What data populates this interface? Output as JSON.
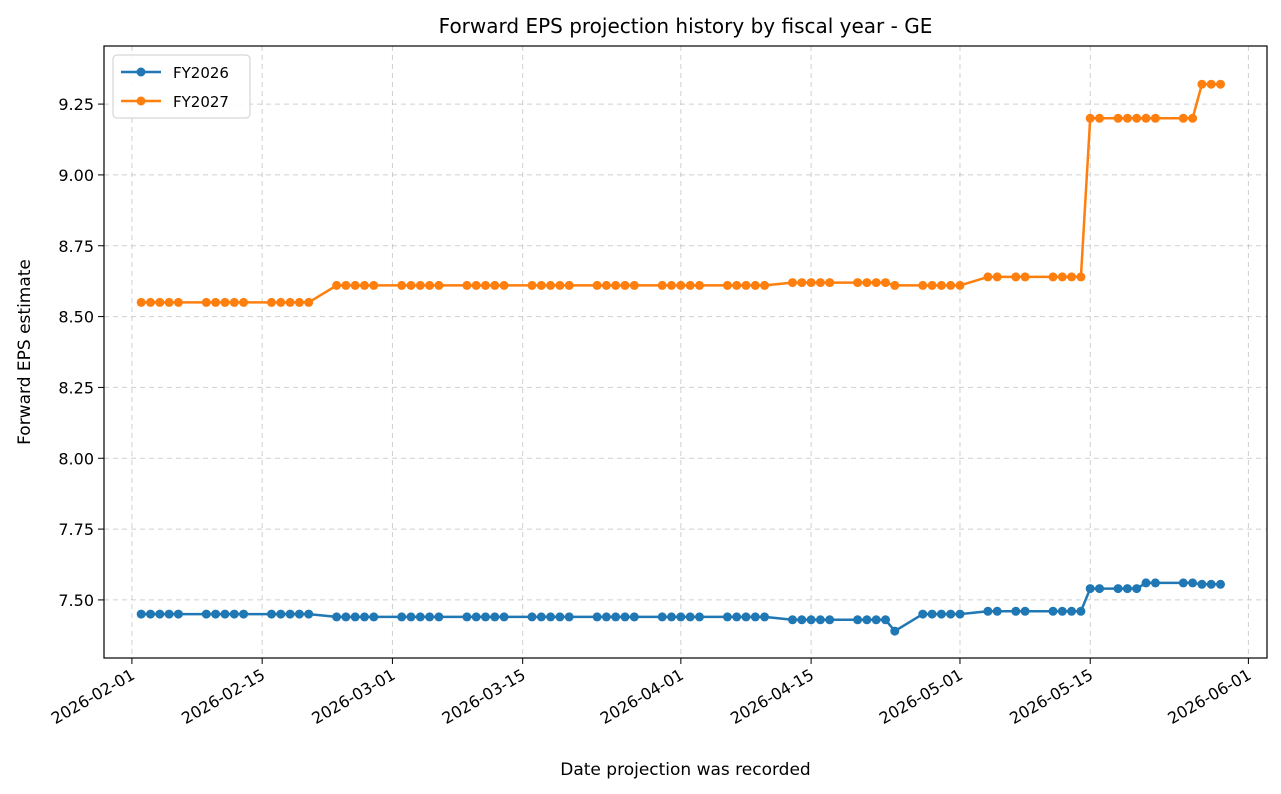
{
  "chart_data": {
    "type": "line",
    "title": "Forward EPS projection history by fiscal year - GE",
    "xlabel": "Date projection was recorded",
    "ylabel": "Forward EPS estimate",
    "x_axis": "date",
    "xlim": [
      "2026-01-29",
      "2026-06-03"
    ],
    "ylim": [
      7.295,
      9.455
    ],
    "x_ticks": [
      "2026-02-01",
      "2026-02-15",
      "2026-03-01",
      "2026-03-15",
      "2026-04-01",
      "2026-04-15",
      "2026-05-01",
      "2026-05-15",
      "2026-06-01"
    ],
    "y_ticks": [
      "7.50",
      "7.75",
      "8.00",
      "8.25",
      "8.50",
      "8.75",
      "9.00",
      "9.25"
    ],
    "grid": true,
    "legend_position": "top-left",
    "series": [
      {
        "name": "FY2026",
        "color": "#1f77b4",
        "points": [
          [
            "2026-02-02",
            7.45
          ],
          [
            "2026-02-03",
            7.45
          ],
          [
            "2026-02-04",
            7.45
          ],
          [
            "2026-02-05",
            7.45
          ],
          [
            "2026-02-06",
            7.45
          ],
          [
            "2026-02-09",
            7.45
          ],
          [
            "2026-02-10",
            7.45
          ],
          [
            "2026-02-11",
            7.45
          ],
          [
            "2026-02-12",
            7.45
          ],
          [
            "2026-02-13",
            7.45
          ],
          [
            "2026-02-16",
            7.45
          ],
          [
            "2026-02-17",
            7.45
          ],
          [
            "2026-02-18",
            7.45
          ],
          [
            "2026-02-19",
            7.45
          ],
          [
            "2026-02-20",
            7.45
          ],
          [
            "2026-02-23",
            7.44
          ],
          [
            "2026-02-24",
            7.44
          ],
          [
            "2026-02-25",
            7.44
          ],
          [
            "2026-02-26",
            7.44
          ],
          [
            "2026-02-27",
            7.44
          ],
          [
            "2026-03-02",
            7.44
          ],
          [
            "2026-03-03",
            7.44
          ],
          [
            "2026-03-04",
            7.44
          ],
          [
            "2026-03-05",
            7.44
          ],
          [
            "2026-03-06",
            7.44
          ],
          [
            "2026-03-09",
            7.44
          ],
          [
            "2026-03-10",
            7.44
          ],
          [
            "2026-03-11",
            7.44
          ],
          [
            "2026-03-12",
            7.44
          ],
          [
            "2026-03-13",
            7.44
          ],
          [
            "2026-03-16",
            7.44
          ],
          [
            "2026-03-17",
            7.44
          ],
          [
            "2026-03-18",
            7.44
          ],
          [
            "2026-03-19",
            7.44
          ],
          [
            "2026-03-20",
            7.44
          ],
          [
            "2026-03-23",
            7.44
          ],
          [
            "2026-03-24",
            7.44
          ],
          [
            "2026-03-25",
            7.44
          ],
          [
            "2026-03-26",
            7.44
          ],
          [
            "2026-03-27",
            7.44
          ],
          [
            "2026-03-30",
            7.44
          ],
          [
            "2026-03-31",
            7.44
          ],
          [
            "2026-04-01",
            7.44
          ],
          [
            "2026-04-02",
            7.44
          ],
          [
            "2026-04-03",
            7.44
          ],
          [
            "2026-04-06",
            7.44
          ],
          [
            "2026-04-07",
            7.44
          ],
          [
            "2026-04-08",
            7.44
          ],
          [
            "2026-04-09",
            7.44
          ],
          [
            "2026-04-10",
            7.44
          ],
          [
            "2026-04-13",
            7.43
          ],
          [
            "2026-04-14",
            7.43
          ],
          [
            "2026-04-15",
            7.43
          ],
          [
            "2026-04-16",
            7.43
          ],
          [
            "2026-04-17",
            7.43
          ],
          [
            "2026-04-20",
            7.43
          ],
          [
            "2026-04-21",
            7.43
          ],
          [
            "2026-04-22",
            7.43
          ],
          [
            "2026-04-23",
            7.43
          ],
          [
            "2026-04-24",
            7.39
          ],
          [
            "2026-04-27",
            7.45
          ],
          [
            "2026-04-28",
            7.45
          ],
          [
            "2026-04-29",
            7.45
          ],
          [
            "2026-04-30",
            7.45
          ],
          [
            "2026-05-01",
            7.45
          ],
          [
            "2026-05-04",
            7.46
          ],
          [
            "2026-05-05",
            7.46
          ],
          [
            "2026-05-07",
            7.46
          ],
          [
            "2026-05-08",
            7.46
          ],
          [
            "2026-05-11",
            7.46
          ],
          [
            "2026-05-12",
            7.46
          ],
          [
            "2026-05-13",
            7.46
          ],
          [
            "2026-05-14",
            7.46
          ],
          [
            "2026-05-15",
            7.54
          ],
          [
            "2026-05-16",
            7.54
          ],
          [
            "2026-05-18",
            7.54
          ],
          [
            "2026-05-19",
            7.54
          ],
          [
            "2026-05-20",
            7.54
          ],
          [
            "2026-05-21",
            7.56
          ],
          [
            "2026-05-22",
            7.56
          ],
          [
            "2026-05-25",
            7.56
          ],
          [
            "2026-05-26",
            7.56
          ],
          [
            "2026-05-27",
            7.555
          ],
          [
            "2026-05-28",
            7.555
          ],
          [
            "2026-05-29",
            7.555
          ]
        ]
      },
      {
        "name": "FY2027",
        "color": "#ff7f0e",
        "points": [
          [
            "2026-02-02",
            8.55
          ],
          [
            "2026-02-03",
            8.55
          ],
          [
            "2026-02-04",
            8.55
          ],
          [
            "2026-02-05",
            8.55
          ],
          [
            "2026-02-06",
            8.55
          ],
          [
            "2026-02-09",
            8.55
          ],
          [
            "2026-02-10",
            8.55
          ],
          [
            "2026-02-11",
            8.55
          ],
          [
            "2026-02-12",
            8.55
          ],
          [
            "2026-02-13",
            8.55
          ],
          [
            "2026-02-16",
            8.55
          ],
          [
            "2026-02-17",
            8.55
          ],
          [
            "2026-02-18",
            8.55
          ],
          [
            "2026-02-19",
            8.55
          ],
          [
            "2026-02-20",
            8.55
          ],
          [
            "2026-02-23",
            8.61
          ],
          [
            "2026-02-24",
            8.61
          ],
          [
            "2026-02-25",
            8.61
          ],
          [
            "2026-02-26",
            8.61
          ],
          [
            "2026-02-27",
            8.61
          ],
          [
            "2026-03-02",
            8.61
          ],
          [
            "2026-03-03",
            8.61
          ],
          [
            "2026-03-04",
            8.61
          ],
          [
            "2026-03-05",
            8.61
          ],
          [
            "2026-03-06",
            8.61
          ],
          [
            "2026-03-09",
            8.61
          ],
          [
            "2026-03-10",
            8.61
          ],
          [
            "2026-03-11",
            8.61
          ],
          [
            "2026-03-12",
            8.61
          ],
          [
            "2026-03-13",
            8.61
          ],
          [
            "2026-03-16",
            8.61
          ],
          [
            "2026-03-17",
            8.61
          ],
          [
            "2026-03-18",
            8.61
          ],
          [
            "2026-03-19",
            8.61
          ],
          [
            "2026-03-20",
            8.61
          ],
          [
            "2026-03-23",
            8.61
          ],
          [
            "2026-03-24",
            8.61
          ],
          [
            "2026-03-25",
            8.61
          ],
          [
            "2026-03-26",
            8.61
          ],
          [
            "2026-03-27",
            8.61
          ],
          [
            "2026-03-30",
            8.61
          ],
          [
            "2026-03-31",
            8.61
          ],
          [
            "2026-04-01",
            8.61
          ],
          [
            "2026-04-02",
            8.61
          ],
          [
            "2026-04-03",
            8.61
          ],
          [
            "2026-04-06",
            8.61
          ],
          [
            "2026-04-07",
            8.61
          ],
          [
            "2026-04-08",
            8.61
          ],
          [
            "2026-04-09",
            8.61
          ],
          [
            "2026-04-10",
            8.61
          ],
          [
            "2026-04-13",
            8.62
          ],
          [
            "2026-04-14",
            8.62
          ],
          [
            "2026-04-15",
            8.62
          ],
          [
            "2026-04-16",
            8.62
          ],
          [
            "2026-04-17",
            8.62
          ],
          [
            "2026-04-20",
            8.62
          ],
          [
            "2026-04-21",
            8.62
          ],
          [
            "2026-04-22",
            8.62
          ],
          [
            "2026-04-23",
            8.62
          ],
          [
            "2026-04-24",
            8.61
          ],
          [
            "2026-04-27",
            8.61
          ],
          [
            "2026-04-28",
            8.61
          ],
          [
            "2026-04-29",
            8.61
          ],
          [
            "2026-04-30",
            8.61
          ],
          [
            "2026-05-01",
            8.61
          ],
          [
            "2026-05-04",
            8.64
          ],
          [
            "2026-05-05",
            8.64
          ],
          [
            "2026-05-07",
            8.64
          ],
          [
            "2026-05-08",
            8.64
          ],
          [
            "2026-05-11",
            8.64
          ],
          [
            "2026-05-12",
            8.64
          ],
          [
            "2026-05-13",
            8.64
          ],
          [
            "2026-05-14",
            8.64
          ],
          [
            "2026-05-15",
            9.2
          ],
          [
            "2026-05-16",
            9.2
          ],
          [
            "2026-05-18",
            9.2
          ],
          [
            "2026-05-19",
            9.2
          ],
          [
            "2026-05-20",
            9.2
          ],
          [
            "2026-05-21",
            9.2
          ],
          [
            "2026-05-22",
            9.2
          ],
          [
            "2026-05-25",
            9.2
          ],
          [
            "2026-05-26",
            9.2
          ],
          [
            "2026-05-27",
            9.32
          ],
          [
            "2026-05-28",
            9.32
          ],
          [
            "2026-05-29",
            9.32
          ]
        ]
      }
    ]
  }
}
